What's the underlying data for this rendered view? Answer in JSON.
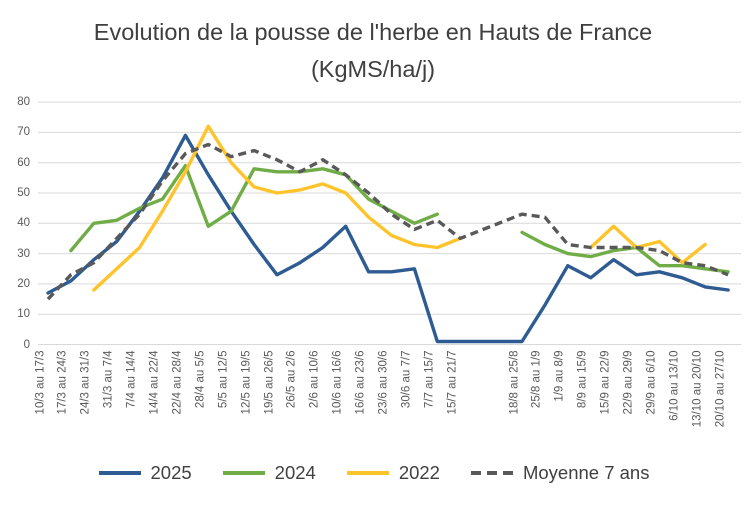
{
  "title": "Evolution de la pousse de l'herbe en Hauts de France (KgMS/ha/j)",
  "chart_data": {
    "type": "line",
    "title": "Evolution de la pousse de l'herbe en Hauts de France (KgMS/ha/j)",
    "ylabel": "",
    "xlabel": "",
    "ylim": [
      0,
      80
    ],
    "yticks": [
      0,
      10,
      20,
      30,
      40,
      50,
      60,
      70,
      80
    ],
    "grid": true,
    "legend_position": "bottom",
    "gridline_color": "#d9d9d9",
    "tick_label_color": "#595959",
    "gap_after_index": 18,
    "gap_extra_slots": 1.7,
    "categories": [
      "10/3 au 17/3",
      "17/3 au 24/3",
      "24/3 au 31/3",
      "31/3 au 7/4",
      "7/4 au 14/4",
      "14/4 au 22/4",
      "22/4 au 28/4",
      "28/4 au 5/5",
      "5/5 au 12/5",
      "12/5 au 19/5",
      "19/5 au 26/5",
      "26/5 au 2/6",
      "2/6 au 10/6",
      "10/6 au 16/6",
      "16/6 au 23/6",
      "23/6 au 30/6",
      "30/6 au 7/7",
      "7/7 au 15/7",
      "15/7 au 21/7",
      "18/8 au 25/8",
      "25/8 au 1/9",
      "1/9 au 8/9",
      "8/9 au 15/9",
      "15/9 au 22/9",
      "22/9 au 29/9",
      "29/9 au 6/10",
      "6/10 au 13/10",
      "13/10 au 20/10",
      "20/10 au 27/10"
    ],
    "series": [
      {
        "name": "2025",
        "color": "#2e5b92",
        "dashed": false,
        "values": [
          17,
          21,
          28,
          34,
          44,
          55,
          69,
          56,
          44,
          33,
          23,
          27,
          32,
          39,
          24,
          24,
          25,
          1,
          1,
          1,
          13,
          26,
          22,
          28,
          23,
          24,
          22,
          19,
          18
        ]
      },
      {
        "name": "2024",
        "color": "#70ad47",
        "dashed": false,
        "values": [
          null,
          31,
          40,
          41,
          45,
          48,
          59,
          39,
          44,
          58,
          57,
          57,
          58,
          56,
          48,
          44,
          40,
          43,
          null,
          37,
          33,
          30,
          29,
          31,
          32,
          26,
          26,
          25,
          24
        ]
      },
      {
        "name": "2022",
        "color": "#ffc32b",
        "dashed": false,
        "values": [
          null,
          null,
          18,
          25,
          32,
          44,
          57,
          72,
          60,
          52,
          50,
          51,
          53,
          50,
          42,
          36,
          33,
          32,
          35,
          null,
          null,
          null,
          32,
          39,
          32,
          34,
          27,
          33,
          null
        ]
      },
      {
        "name": "Moyenne 7 ans",
        "color": "#595959",
        "dashed": true,
        "values": [
          15,
          23,
          27,
          35,
          43,
          54,
          63,
          66,
          62,
          64,
          61,
          57,
          61,
          56,
          50,
          43,
          38,
          41,
          35,
          43,
          42,
          33,
          32,
          32,
          32,
          31,
          27,
          26,
          23
        ]
      }
    ]
  }
}
